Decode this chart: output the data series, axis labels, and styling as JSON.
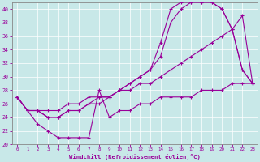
{
  "bg_color": "#c8e8e8",
  "line_color": "#990099",
  "grid_color": "#b0d8d8",
  "xlabel": "Windchill (Refroidissement éolien,°C)",
  "xlim": [
    -0.5,
    23.5
  ],
  "ylim": [
    20,
    41
  ],
  "yticks": [
    20,
    22,
    24,
    26,
    28,
    30,
    32,
    34,
    36,
    38,
    40
  ],
  "xticks": [
    0,
    1,
    2,
    3,
    4,
    5,
    6,
    7,
    8,
    9,
    10,
    11,
    12,
    13,
    14,
    15,
    16,
    17,
    18,
    19,
    20,
    21,
    22,
    23
  ],
  "lines": [
    [
      27,
      25,
      25,
      25,
      25,
      26,
      26,
      27,
      27,
      27,
      28,
      28,
      29,
      29,
      30,
      31,
      32,
      33,
      34,
      35,
      36,
      37,
      39,
      29
    ],
    [
      27,
      25,
      25,
      24,
      24,
      25,
      25,
      26,
      27,
      27,
      28,
      29,
      30,
      31,
      33,
      38,
      40,
      41,
      41,
      41,
      40,
      37,
      31,
      29
    ],
    [
      27,
      25,
      25,
      24,
      24,
      25,
      25,
      26,
      26,
      27,
      28,
      29,
      30,
      31,
      35,
      40,
      41,
      41,
      41,
      41,
      40,
      37,
      31,
      29
    ],
    [
      27,
      25,
      23,
      22,
      21,
      21,
      21,
      21,
      28,
      24,
      25,
      25,
      26,
      26,
      27,
      27,
      27,
      27,
      28,
      28,
      28,
      29,
      29,
      29
    ]
  ],
  "x": [
    0,
    1,
    2,
    3,
    4,
    5,
    6,
    7,
    8,
    9,
    10,
    11,
    12,
    13,
    14,
    15,
    16,
    17,
    18,
    19,
    20,
    21,
    22,
    23
  ]
}
